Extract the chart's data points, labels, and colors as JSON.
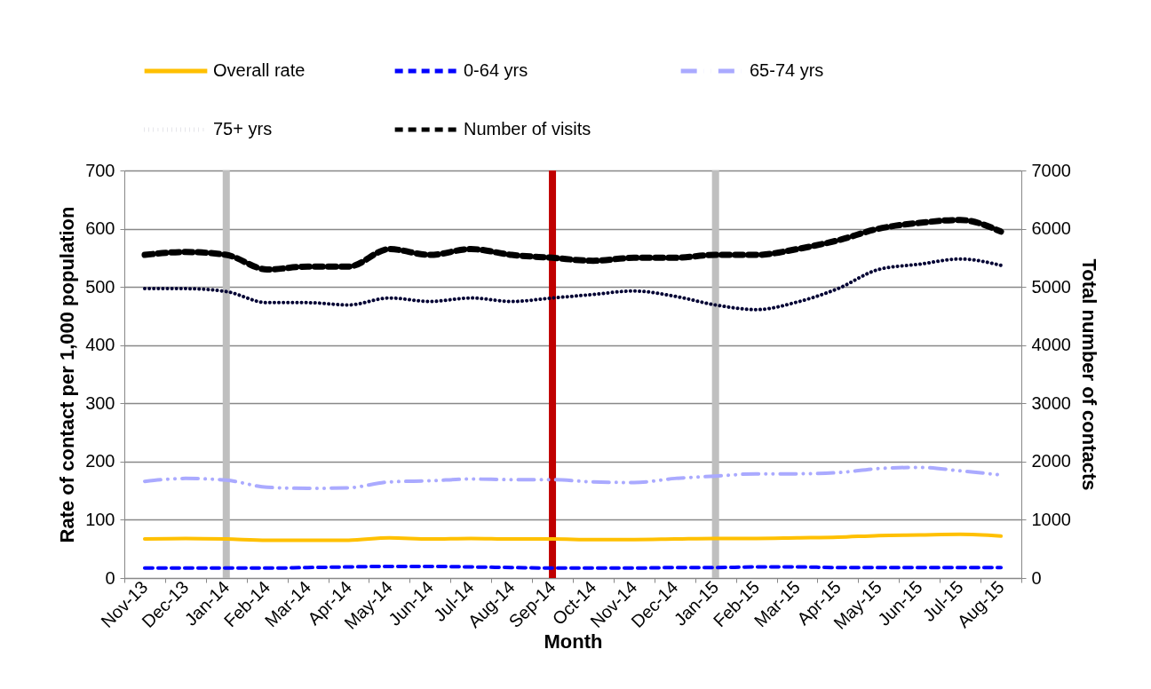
{
  "chart_data": {
    "type": "line",
    "xlabel": "Month",
    "ylabel": "Rate of contact per 1,000 population",
    "y2label": "Total number of contacts",
    "categories": [
      "Nov-13",
      "Dec-13",
      "Jan-14",
      "Feb-14",
      "Mar-14",
      "Apr-14",
      "May-14",
      "Jun-14",
      "Jul-14",
      "Aug-14",
      "Sep-14",
      "Oct-14",
      "Nov-14",
      "Dec-14",
      "Jan-15",
      "Feb-15",
      "Mar-15",
      "Apr-15",
      "May-15",
      "Jun-15",
      "Jul-15",
      "Aug-15"
    ],
    "series": [
      {
        "name": "Overall rate",
        "color": "#ffc000",
        "line_style": "solid",
        "values": [
          67,
          68,
          67,
          65,
          65,
          65,
          69,
          67,
          68,
          67,
          67,
          66,
          66,
          67,
          68,
          68,
          69,
          70,
          73,
          74,
          75,
          72
        ]
      },
      {
        "name": "0-64 yrs",
        "color": "#0000ff",
        "line_style": "dashed",
        "values": [
          17,
          17,
          17,
          17,
          18,
          19,
          20,
          20,
          19,
          18,
          17,
          17,
          17,
          18,
          18,
          19,
          19,
          18,
          18,
          18,
          18,
          18
        ]
      },
      {
        "name": "65-74 yrs",
        "color": "#aaaaff",
        "line_style": "dashdot",
        "values": [
          166,
          171,
          168,
          156,
          154,
          155,
          165,
          167,
          170,
          169,
          169,
          165,
          164,
          171,
          175,
          179,
          179,
          181,
          188,
          190,
          184,
          177
        ]
      },
      {
        "name": "75+ yrs",
        "color": "#000033",
        "line_style": "dotted",
        "values": [
          497,
          497,
          492,
          473,
          473,
          469,
          481,
          475,
          481,
          475,
          481,
          487,
          493,
          484,
          469,
          461,
          474,
          497,
          530,
          539,
          548,
          537
        ]
      },
      {
        "name": "Number of visits",
        "color": "#000000",
        "line_style": "dashed",
        "axis": "y2",
        "values": [
          5550,
          5600,
          5550,
          5300,
          5350,
          5350,
          5650,
          5550,
          5650,
          5550,
          5500,
          5450,
          5500,
          5500,
          5550,
          5550,
          5650,
          5800,
          6000,
          6100,
          6150,
          5950
        ]
      }
    ],
    "ylim": [
      0,
      700
    ],
    "yticks": [
      0,
      100,
      200,
      300,
      400,
      500,
      600,
      700
    ],
    "y2lim": [
      0,
      7000
    ],
    "y2ticks": [
      0,
      1000,
      2000,
      3000,
      4000,
      5000,
      6000,
      7000
    ],
    "ref_lines": [
      {
        "axis": "x",
        "value": "Jan-14",
        "color": "#bfbfbf"
      },
      {
        "axis": "x",
        "value": "Sep-14",
        "color": "#c00000"
      },
      {
        "axis": "x",
        "value": "Jan-15",
        "color": "#bfbfbf"
      }
    ],
    "grid": "y",
    "legend": "top"
  }
}
